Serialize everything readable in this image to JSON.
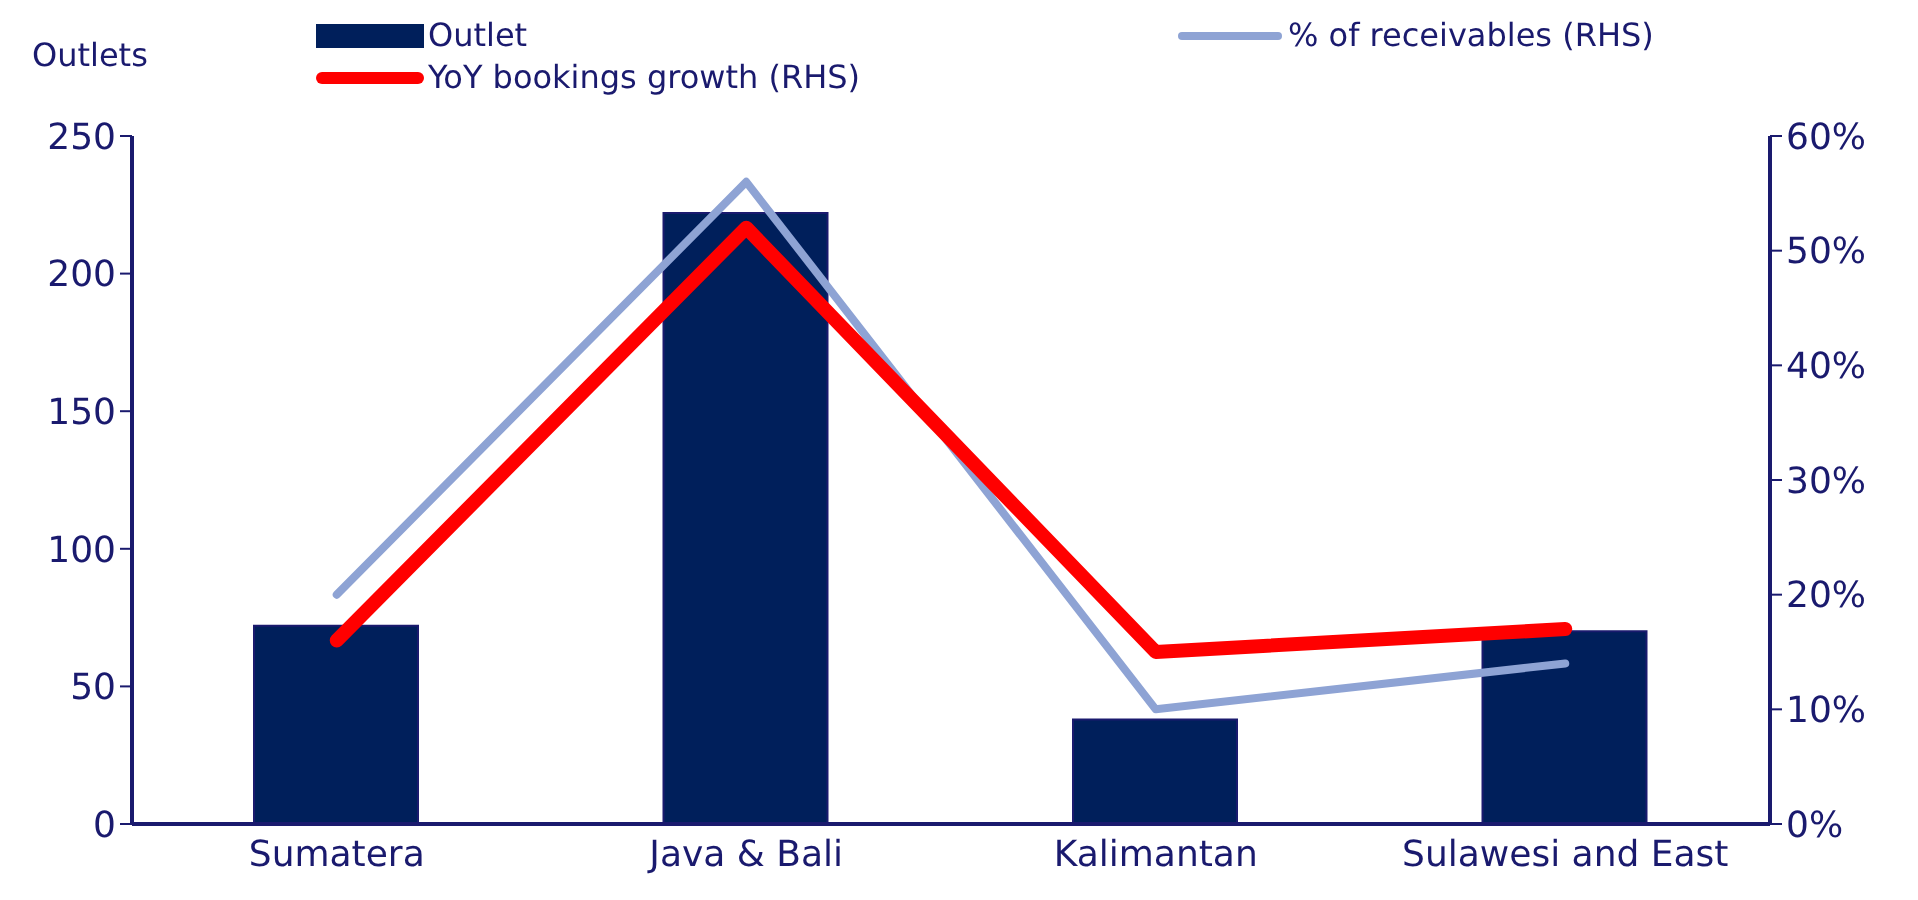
{
  "chart_data": {
    "type": "bar",
    "ylabel": "Outlets",
    "categories": [
      "Sumatera",
      "Java & Bali",
      "Kalimantan",
      "Sulawesi and East"
    ],
    "series": [
      {
        "name": "Outlet",
        "color": "#001f5b",
        "values": [
          72,
          222,
          38,
          70
        ]
      },
      {
        "name": "% of receivables (RHS)",
        "type": "line",
        "axis": "y2",
        "color": "#8ea3d4",
        "values": [
          20,
          56,
          10,
          14
        ]
      },
      {
        "name": "YoY bookings growth (RHS)",
        "type": "line",
        "axis": "y2",
        "color": "#ff0000",
        "values": [
          16,
          52,
          15,
          17
        ]
      }
    ],
    "ylim": [
      0,
      250
    ],
    "yticks": [
      0,
      50,
      100,
      150,
      200,
      250
    ],
    "y2lim": [
      0,
      60
    ],
    "y2ticks": [
      {
        "value": 0,
        "label": "0%"
      },
      {
        "value": 10,
        "label": "10%"
      },
      {
        "value": 20,
        "label": "20%"
      },
      {
        "value": 30,
        "label": "30%"
      },
      {
        "value": 40,
        "label": "40%"
      },
      {
        "value": 50,
        "label": "50%"
      },
      {
        "value": 60,
        "label": "60%"
      }
    ],
    "grid": false,
    "legend": "top",
    "marker": "none",
    "line_style": "solid"
  }
}
